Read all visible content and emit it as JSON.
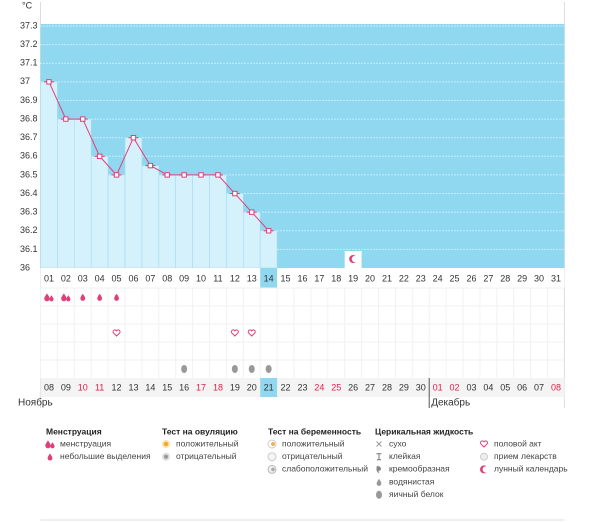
{
  "chart_data": {
    "type": "line",
    "y_unit": "°C",
    "categories": [
      "01",
      "02",
      "03",
      "04",
      "05",
      "06",
      "07",
      "08",
      "09",
      "10",
      "11",
      "12",
      "13",
      "14",
      "15",
      "16",
      "17",
      "18",
      "19",
      "20",
      "21",
      "22",
      "23",
      "24",
      "25",
      "26",
      "27",
      "28",
      "29",
      "30",
      "31"
    ],
    "values": [
      37.0,
      36.8,
      36.8,
      36.6,
      36.5,
      36.7,
      36.55,
      36.5,
      36.5,
      36.5,
      36.5,
      36.4,
      36.3,
      36.2,
      null,
      null,
      null,
      null,
      null,
      null,
      null,
      null,
      null,
      null,
      null,
      null,
      null,
      null,
      null,
      null,
      null
    ],
    "ylim": [
      36,
      37.3
    ],
    "yticks": [
      36,
      36.1,
      36.2,
      36.3,
      36.4,
      36.5,
      36.6,
      36.7,
      36.8,
      36.9,
      37,
      37.1,
      37.2,
      37.3
    ],
    "grid": true,
    "line_color": "#e0407a",
    "bar_color": "#d4f1fc",
    "background_color": "#8fd8f0",
    "current_day": "14",
    "moon_day": "19",
    "event_rows": [
      [
        {
          "icon": "drop2",
          "days": [
            "01",
            "02"
          ]
        },
        {
          "icon": "drop",
          "days": [
            "03",
            "04",
            "05"
          ]
        }
      ],
      [],
      [
        {
          "icon": "heart",
          "days": [
            "05",
            "12",
            "13"
          ]
        }
      ],
      [],
      [
        {
          "icon": "egg",
          "days": [
            "09",
            "12",
            "13",
            "14"
          ]
        }
      ]
    ],
    "dates": [
      "08",
      "09",
      "10",
      "11",
      "12",
      "13",
      "14",
      "15",
      "16",
      "17",
      "18",
      "19",
      "20",
      "21",
      "22",
      "23",
      "24",
      "25",
      "26",
      "27",
      "28",
      "29",
      "30",
      "01",
      "02",
      "03",
      "04",
      "05",
      "06",
      "07",
      "08"
    ],
    "date_colors": [
      "#333",
      "#333",
      "#e0204a",
      "#e0204a",
      "#333",
      "#333",
      "#333",
      "#333",
      "#333",
      "#e0204a",
      "#e0204a",
      "#333",
      "#333",
      "#333",
      "#333",
      "#333",
      "#e0204a",
      "#e0204a",
      "#333",
      "#333",
      "#333",
      "#333",
      "#333",
      "#e0204a",
      "#e0204a",
      "#333",
      "#333",
      "#333",
      "#333",
      "#333",
      "#e0204a"
    ],
    "months": [
      {
        "label": "Ноябрь",
        "start": "08"
      },
      {
        "label": "Декабрь",
        "start": "01"
      }
    ],
    "legend": [
      {
        "title": "Менструация",
        "items": [
          {
            "icon": "drop2",
            "label": "менструация"
          },
          {
            "icon": "drop",
            "label": "небольшие выделения"
          }
        ]
      },
      {
        "title": "Тест на овуляцию",
        "items": [
          {
            "icon": "sun",
            "label": "положительный"
          },
          {
            "icon": "graydot",
            "label": "отрицательный"
          }
        ]
      },
      {
        "title": "Тест на беременность",
        "items": [
          {
            "icon": "pregpos",
            "label": "положительный"
          },
          {
            "icon": "pregneg",
            "label": "отрицательный"
          },
          {
            "icon": "pregweak",
            "label": "слабоположительный"
          }
        ]
      },
      {
        "title": "Церикальная жидкость",
        "items": [
          {
            "icon": "cross",
            "label": "сухо"
          },
          {
            "icon": "tee",
            "label": "клейкая"
          },
          {
            "icon": "cream",
            "label": "кремообразная"
          },
          {
            "icon": "water",
            "label": "водянистая"
          },
          {
            "icon": "egg",
            "label": "яичный белок"
          }
        ]
      },
      {
        "items": [
          {
            "icon": "heart",
            "label": "половой акт"
          },
          {
            "icon": "pill",
            "label": "прием лекарств"
          },
          {
            "icon": "moon",
            "label": "лунный календарь"
          }
        ]
      }
    ]
  }
}
